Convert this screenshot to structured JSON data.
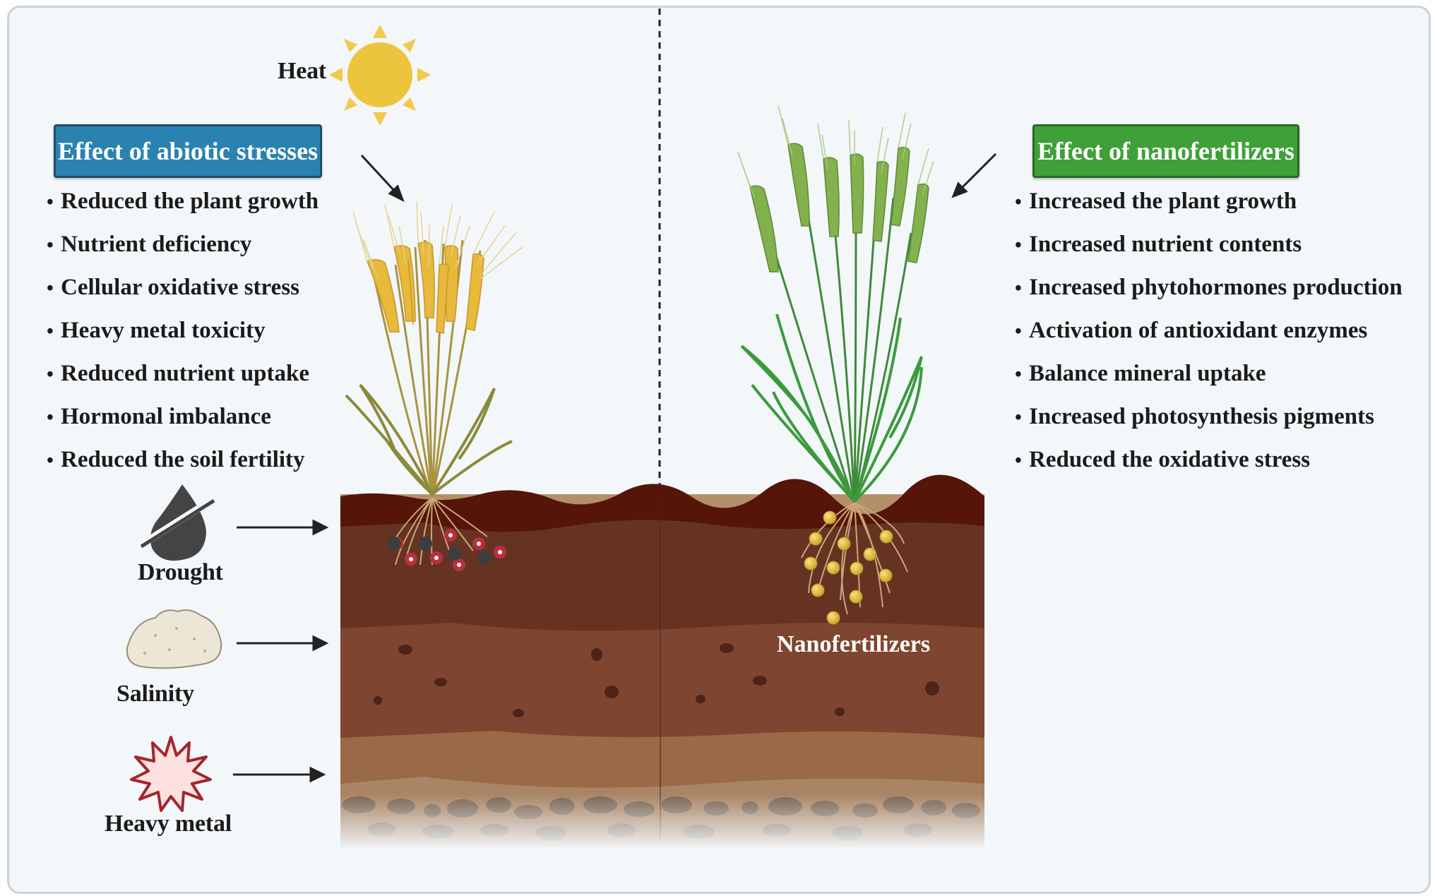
{
  "left_panel": {
    "title": "Effect of abiotic stresses",
    "items": [
      "Reduced the plant growth",
      "Nutrient deficiency",
      "Cellular oxidative stress",
      "Heavy metal toxicity",
      "Reduced nutrient uptake",
      "Hormonal imbalance",
      "Reduced the soil fertility"
    ],
    "title_color": "#2a82b0"
  },
  "right_panel": {
    "title": "Effect of nanofertilizers",
    "items": [
      "Increased the plant growth",
      "Increased nutrient contents",
      "Increased phytohormones production",
      "Activation of antioxidant enzymes",
      "Balance mineral uptake",
      "Increased photosynthesis pigments",
      "Reduced the oxidative stress"
    ],
    "title_color": "#3fa039"
  },
  "stressors": {
    "heat": {
      "label": "Heat",
      "icon": "sun-icon"
    },
    "drought": {
      "label": "Drought",
      "icon": "no-water-drop-icon"
    },
    "salinity": {
      "label": "Salinity",
      "icon": "salt-pile-icon"
    },
    "heavy_metal": {
      "label": "Heavy metal",
      "icon": "starburst-icon"
    }
  },
  "nanofertilizers_label": "Nanofertilizers",
  "colors": {
    "stressed_wheat": "#e8b93a",
    "healthy_wheat": "#7fae4a",
    "soil_top": "#5a1a10",
    "soil_mid": "#6a3424",
    "nano_particle": "#e6c33e"
  }
}
